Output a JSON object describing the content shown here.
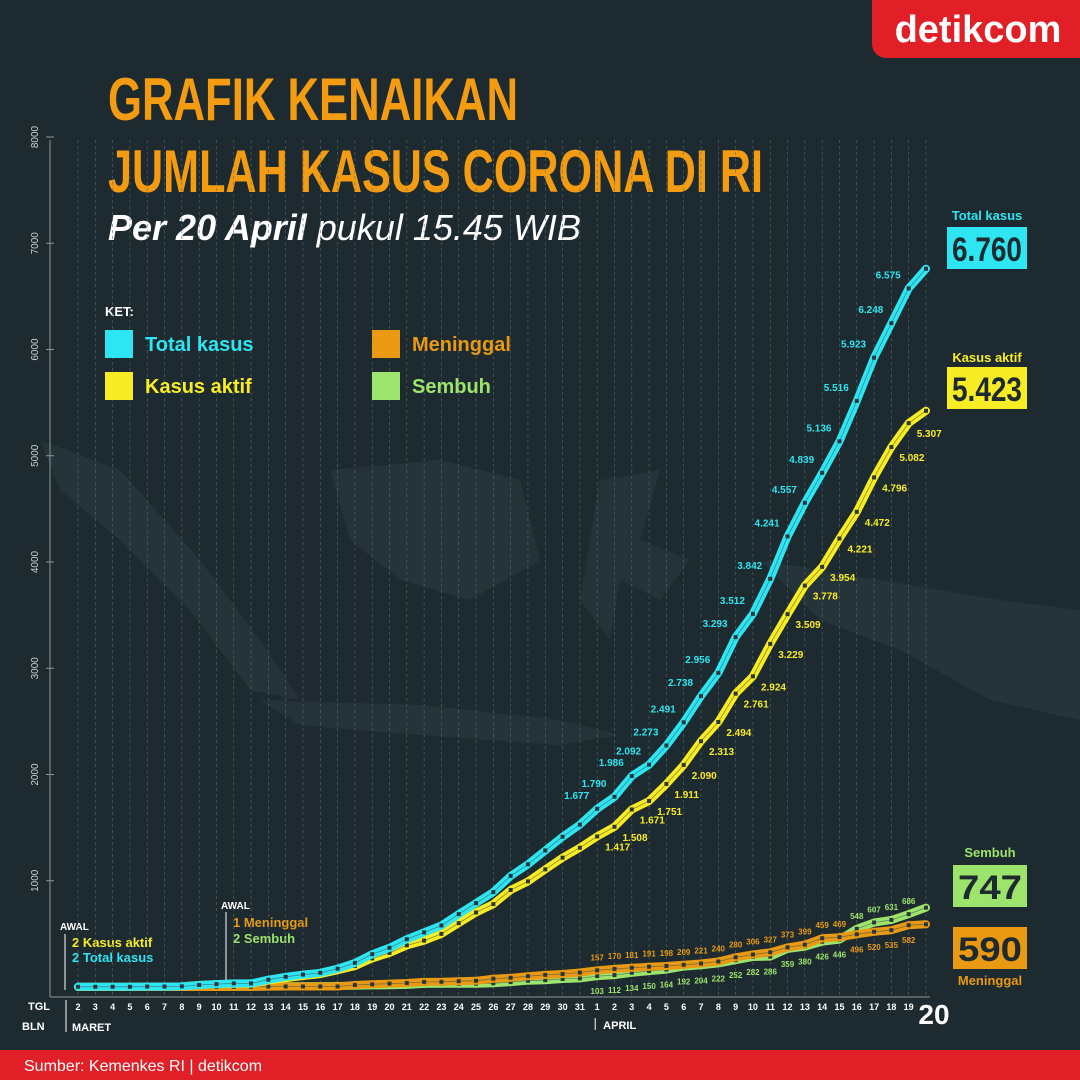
{
  "chart_data": {
    "type": "line",
    "title_lines": [
      "GRAFIK KENAIKAN",
      "JUMLAH KASUS CORONA DI RI"
    ],
    "subtitle_date": "Per 20 April",
    "subtitle_time": "pukul 15.45 WIB",
    "legend_title": "KET:",
    "x_row_labels": [
      "TGL",
      "BLN"
    ],
    "months": [
      "MARET",
      "APRIL"
    ],
    "categories": [
      "2",
      "3",
      "4",
      "5",
      "6",
      "7",
      "8",
      "9",
      "10",
      "11",
      "12",
      "13",
      "14",
      "15",
      "16",
      "17",
      "18",
      "19",
      "20",
      "21",
      "22",
      "23",
      "24",
      "25",
      "26",
      "27",
      "28",
      "29",
      "30",
      "31",
      "1",
      "2",
      "3",
      "4",
      "5",
      "6",
      "7",
      "8",
      "9",
      "10",
      "11",
      "12",
      "13",
      "14",
      "15",
      "16",
      "17",
      "18",
      "19",
      "20"
    ],
    "ylim": [
      0,
      8000
    ],
    "yticks": [
      1000,
      2000,
      3000,
      4000,
      5000,
      6000,
      7000,
      8000
    ],
    "grid": true,
    "series": [
      {
        "name": "Total kasus",
        "color": "#2ee6f2",
        "values": [
          2,
          2,
          2,
          2,
          4,
          4,
          6,
          19,
          27,
          34,
          34,
          69,
          96,
          117,
          134,
          172,
          227,
          309,
          369,
          450,
          514,
          579,
          686,
          790,
          893,
          1046,
          1155,
          1285,
          1414,
          1528,
          1677,
          1790,
          1986,
          2092,
          2273,
          2491,
          2738,
          2956,
          3293,
          3512,
          3842,
          4241,
          4557,
          4839,
          5136,
          5516,
          5923,
          6248,
          6575,
          6760
        ],
        "value_labels": [
          null,
          null,
          null,
          null,
          null,
          null,
          null,
          null,
          null,
          null,
          null,
          null,
          null,
          null,
          null,
          null,
          null,
          null,
          null,
          null,
          null,
          null,
          null,
          null,
          null,
          null,
          null,
          null,
          null,
          null,
          "1.677",
          "1.790",
          "1.986",
          "2.092",
          "2.273",
          "2.491",
          "2.738",
          "2.956",
          "3.293",
          "3.512",
          "3.842",
          "4.241",
          "4.557",
          "4.839",
          "5.136",
          "5.516",
          "5.923",
          "6.248",
          "6.575",
          "6.760"
        ]
      },
      {
        "name": "Kasus aktif",
        "color": "#f8ec24",
        "values": [
          2,
          2,
          2,
          2,
          4,
          4,
          6,
          19,
          27,
          31,
          30,
          60,
          83,
          104,
          121,
          158,
          197,
          269,
          321,
          392,
          437,
          500,
          601,
          701,
          780,
          913,
          994,
          1107,
          1217,
          1311,
          1417,
          1508,
          1671,
          1751,
          1911,
          2090,
          2313,
          2494,
          2761,
          2924,
          3229,
          3509,
          3778,
          3954,
          4221,
          4472,
          4796,
          5082,
          5307,
          5423
        ],
        "value_labels": [
          null,
          null,
          null,
          null,
          null,
          null,
          null,
          null,
          null,
          null,
          null,
          null,
          null,
          null,
          null,
          null,
          null,
          null,
          null,
          null,
          null,
          null,
          null,
          null,
          null,
          null,
          null,
          null,
          null,
          null,
          "1.417",
          "1.508",
          "1.671",
          "1.751",
          "1.911",
          "2.090",
          "2.313",
          "2.494",
          "2.761",
          "2.924",
          "3.229",
          "3.509",
          "3.778",
          "3.954",
          "4.221",
          "4.472",
          "4.796",
          "5.082",
          "5.307",
          "5.423"
        ]
      },
      {
        "name": "Meninggal",
        "color": "#e99a12",
        "values": [
          0,
          0,
          0,
          0,
          0,
          0,
          0,
          0,
          0,
          1,
          1,
          4,
          5,
          5,
          5,
          5,
          19,
          25,
          32,
          38,
          48,
          49,
          55,
          58,
          78,
          87,
          102,
          114,
          122,
          136,
          157,
          170,
          181,
          191,
          198,
          209,
          221,
          240,
          280,
          306,
          327,
          373,
          399,
          459,
          469,
          496,
          520,
          535,
          582,
          590
        ],
        "value_labels": [
          null,
          null,
          null,
          null,
          null,
          null,
          null,
          null,
          null,
          null,
          null,
          null,
          null,
          null,
          null,
          null,
          null,
          null,
          null,
          null,
          null,
          null,
          null,
          null,
          null,
          null,
          null,
          null,
          null,
          null,
          "157",
          "170",
          "181",
          "191",
          "198",
          "209",
          "221",
          "240",
          "280",
          "306",
          "327",
          "373",
          "399",
          "459",
          "469",
          "496",
          "520",
          "535",
          "582",
          "590"
        ]
      },
      {
        "name": "Sembuh",
        "color": "#9de46c",
        "values": [
          0,
          0,
          0,
          0,
          0,
          0,
          0,
          0,
          0,
          2,
          3,
          5,
          8,
          8,
          8,
          9,
          11,
          15,
          16,
          20,
          29,
          30,
          30,
          31,
          35,
          46,
          59,
          64,
          75,
          81,
          103,
          112,
          134,
          150,
          164,
          192,
          204,
          222,
          252,
          282,
          286,
          359,
          380,
          426,
          446,
          548,
          607,
          631,
          686,
          747
        ],
        "value_labels": [
          null,
          null,
          null,
          null,
          null,
          null,
          null,
          null,
          null,
          null,
          null,
          null,
          null,
          null,
          null,
          null,
          null,
          null,
          null,
          null,
          null,
          null,
          null,
          null,
          null,
          null,
          null,
          null,
          null,
          null,
          "103",
          "112",
          "134",
          "150",
          "164",
          "192",
          "204",
          "222",
          "252",
          "282",
          "286",
          "359",
          "380",
          "426",
          "446",
          "548",
          "607",
          "631",
          "686",
          "747"
        ]
      }
    ],
    "annotations": [
      {
        "title": "AWAL",
        "lines": [
          "2 Kasus aktif",
          "2 Total kasus"
        ]
      },
      {
        "title": "AWAL",
        "lines": [
          "1 Meninggal",
          "2 Sembuh"
        ]
      }
    ],
    "source": "Sumber: Kemenkes RI | detikcom",
    "logo": "detikcom"
  }
}
